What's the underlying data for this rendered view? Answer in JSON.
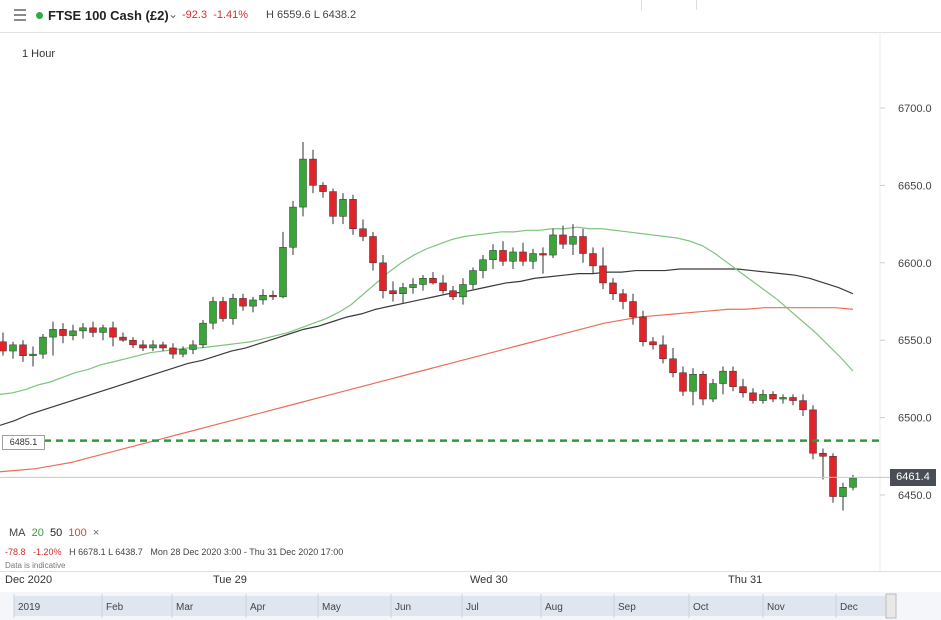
{
  "header": {
    "instrument": "FTSE 100 Cash (£2)",
    "change": "-92.3",
    "change_pct": "-1.41%",
    "high_low": "H 6559.6  L 6438.2",
    "menu_icon": "hamburger-menu-icon",
    "status_color": "#2eaa4a"
  },
  "interval": "1 Hour",
  "legend": {
    "ma_label": "MA",
    "ma20": "20",
    "ma50": "50",
    "ma100": "100",
    "close": "×",
    "change": "-78.8",
    "change_pct": "-1.20%",
    "hl": "H 6678.1  L 6438.7",
    "range": "Mon 28 Dec 2020 3:00 - Thu 31 Dec 2020 17:00",
    "indicative": "Data is indicative"
  },
  "time_axis": {
    "labels": [
      "Dec 2020",
      "Tue 29",
      "Wed 30",
      "Thu 31"
    ]
  },
  "navigator": {
    "labels": [
      "2019",
      "Feb",
      "Mar",
      "Apr",
      "May",
      "Jun",
      "Jul",
      "Aug",
      "Sep",
      "Oct",
      "Nov",
      "Dec"
    ]
  },
  "current_price": "6461.4",
  "level_label": "6485.1",
  "chart_data": {
    "type": "candlestick",
    "y_ticks": [
      "6700.0",
      "6650.0",
      "6600.0",
      "6550.0",
      "6500.0",
      "6450.0"
    ],
    "y_tick_values": [
      6700,
      6650,
      6600,
      6550,
      6500,
      6450
    ],
    "ylim": [
      6430,
      6730
    ],
    "colors": {
      "up": "#3aa63a",
      "down": "#e0242a",
      "ma20": "#7cc47c",
      "ma50": "#3a3a3a",
      "ma100": "#e8705a",
      "level": "#2e9a3e"
    },
    "reference_line": 6485.1,
    "last_price": 6461.4,
    "candles": [
      [
        6549,
        6555,
        6540,
        6543
      ],
      [
        6543,
        6549,
        6538,
        6547
      ],
      [
        6547,
        6550,
        6536,
        6540
      ],
      [
        6540,
        6546,
        6533,
        6541
      ],
      [
        6541,
        6554,
        6538,
        6552
      ],
      [
        6552,
        6562,
        6540,
        6557
      ],
      [
        6557,
        6561,
        6548,
        6553
      ],
      [
        6553,
        6560,
        6550,
        6556
      ],
      [
        6556,
        6561,
        6551,
        6558
      ],
      [
        6558,
        6562,
        6552,
        6555
      ],
      [
        6555,
        6560,
        6550,
        6558
      ],
      [
        6558,
        6562,
        6546,
        6552
      ],
      [
        6552,
        6555,
        6549,
        6550
      ],
      [
        6550,
        6552,
        6545,
        6547
      ],
      [
        6547,
        6550,
        6543,
        6545
      ],
      [
        6545,
        6550,
        6543,
        6547
      ],
      [
        6547,
        6549,
        6543,
        6545
      ],
      [
        6545,
        6548,
        6538,
        6541
      ],
      [
        6541,
        6546,
        6539,
        6544
      ],
      [
        6544,
        6550,
        6541,
        6547
      ],
      [
        6547,
        6563,
        6545,
        6561
      ],
      [
        6561,
        6578,
        6557,
        6575
      ],
      [
        6575,
        6578,
        6562,
        6564
      ],
      [
        6564,
        6580,
        6560,
        6577
      ],
      [
        6577,
        6580,
        6569,
        6572
      ],
      [
        6572,
        6578,
        6568,
        6576
      ],
      [
        6576,
        6583,
        6573,
        6579
      ],
      [
        6579,
        6582,
        6576,
        6578
      ],
      [
        6578,
        6620,
        6577,
        6610
      ],
      [
        6610,
        6640,
        6605,
        6636
      ],
      [
        6636,
        6678,
        6630,
        6667
      ],
      [
        6667,
        6673,
        6645,
        6650
      ],
      [
        6650,
        6652,
        6642,
        6646
      ],
      [
        6646,
        6648,
        6625,
        6630
      ],
      [
        6630,
        6645,
        6625,
        6641
      ],
      [
        6641,
        6644,
        6618,
        6622
      ],
      [
        6622,
        6628,
        6614,
        6617
      ],
      [
        6617,
        6620,
        6595,
        6600
      ],
      [
        6600,
        6605,
        6577,
        6582
      ],
      [
        6582,
        6588,
        6575,
        6580
      ],
      [
        6580,
        6587,
        6574,
        6584
      ],
      [
        6584,
        6590,
        6580,
        6586
      ],
      [
        6586,
        6592,
        6582,
        6590
      ],
      [
        6590,
        6594,
        6586,
        6587
      ],
      [
        6587,
        6592,
        6580,
        6582
      ],
      [
        6582,
        6585,
        6576,
        6578
      ],
      [
        6578,
        6590,
        6573,
        6586
      ],
      [
        6586,
        6597,
        6583,
        6595
      ],
      [
        6595,
        6605,
        6590,
        6602
      ],
      [
        6602,
        6612,
        6596,
        6608
      ],
      [
        6608,
        6614,
        6598,
        6601
      ],
      [
        6601,
        6610,
        6596,
        6607
      ],
      [
        6607,
        6613,
        6598,
        6601
      ],
      [
        6601,
        6609,
        6596,
        6606
      ],
      [
        6606,
        6610,
        6593,
        6605
      ],
      [
        6605,
        6622,
        6603,
        6618
      ],
      [
        6618,
        6624,
        6609,
        6612
      ],
      [
        6612,
        6625,
        6605,
        6617
      ],
      [
        6617,
        6622,
        6600,
        6606
      ],
      [
        6606,
        6610,
        6593,
        6598
      ],
      [
        6598,
        6610,
        6583,
        6587
      ],
      [
        6587,
        6590,
        6576,
        6580
      ],
      [
        6580,
        6583,
        6570,
        6575
      ],
      [
        6575,
        6580,
        6560,
        6565
      ],
      [
        6565,
        6569,
        6546,
        6549
      ],
      [
        6549,
        6552,
        6544,
        6547
      ],
      [
        6547,
        6553,
        6535,
        6538
      ],
      [
        6538,
        6545,
        6526,
        6529
      ],
      [
        6529,
        6533,
        6514,
        6517
      ],
      [
        6517,
        6532,
        6508,
        6528
      ],
      [
        6528,
        6530,
        6508,
        6512
      ],
      [
        6512,
        6525,
        6510,
        6522
      ],
      [
        6522,
        6533,
        6515,
        6530
      ],
      [
        6530,
        6533,
        6517,
        6520
      ],
      [
        6520,
        6525,
        6513,
        6516
      ],
      [
        6516,
        6519,
        6509,
        6511
      ],
      [
        6511,
        6518,
        6509,
        6515
      ],
      [
        6515,
        6517,
        6510,
        6512
      ],
      [
        6512,
        6515,
        6509,
        6513
      ],
      [
        6513,
        6515,
        6508,
        6511
      ],
      [
        6511,
        6515,
        6501,
        6505
      ],
      [
        6505,
        6508,
        6473,
        6477
      ],
      [
        6477,
        6480,
        6460,
        6475
      ],
      [
        6475,
        6477,
        6445,
        6449
      ],
      [
        6449,
        6458,
        6440,
        6455
      ],
      [
        6455,
        6463,
        6453,
        6461
      ]
    ],
    "ma20": [
      6515,
      6516,
      6518,
      6521,
      6523,
      6526,
      6529,
      6531,
      6534,
      6536,
      6538,
      6540,
      6542,
      6543,
      6544,
      6545,
      6545,
      6546,
      6547,
      6548,
      6549,
      6551,
      6553,
      6555,
      6558,
      6561,
      6564,
      6568,
      6573,
      6580,
      6587,
      6594,
      6600,
      6605,
      6609,
      6612,
      6615,
      6617,
      6618,
      6619,
      6620,
      6620,
      6621,
      6621,
      6622,
      6622,
      6623,
      6622,
      6622,
      6621,
      6620,
      6619,
      6618,
      6617,
      6616,
      6614,
      6611,
      6606,
      6600,
      6594,
      6588,
      6582,
      6576,
      6569,
      6562,
      6555,
      6547,
      6539,
      6530
    ],
    "ma50": [
      6495,
      6498,
      6502,
      6505,
      6508,
      6511,
      6514,
      6517,
      6520,
      6523,
      6526,
      6529,
      6532,
      6535,
      6537,
      6540,
      6543,
      6545,
      6548,
      6551,
      6554,
      6557,
      6559,
      6562,
      6565,
      6567,
      6570,
      6572,
      6574,
      6576,
      6578,
      6580,
      6581,
      6583,
      6585,
      6587,
      6588,
      6590,
      6591,
      6592,
      6593,
      6593,
      6594,
      6594,
      6595,
      6595,
      6595,
      6596,
      6596,
      6596,
      6596,
      6596,
      6595,
      6594,
      6593,
      6592,
      6590,
      6587,
      6584,
      6580
    ],
    "ma100": [
      6465,
      6466,
      6467,
      6469,
      6471,
      6474,
      6477,
      6480,
      6483,
      6486,
      6489,
      6492,
      6495,
      6498,
      6501,
      6504,
      6507,
      6510,
      6513,
      6516,
      6519,
      6522,
      6525,
      6528,
      6531,
      6534,
      6537,
      6540,
      6543,
      6546,
      6549,
      6552,
      6555,
      6558,
      6561,
      6563,
      6565,
      6566,
      6567,
      6568,
      6569,
      6570,
      6570,
      6571,
      6571,
      6571,
      6571,
      6571,
      6570
    ]
  }
}
